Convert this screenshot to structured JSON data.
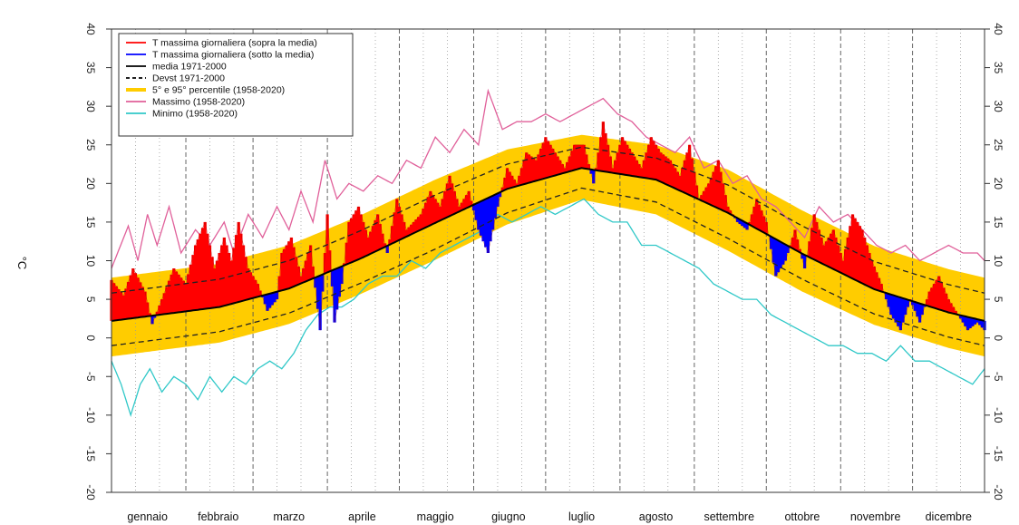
{
  "chart_data": {
    "type": "area",
    "ylabel": "°C",
    "ylim": [
      -20,
      40
    ],
    "yticks": [
      "40",
      "35",
      "30",
      "25",
      "20",
      "15",
      "10",
      "5",
      "0",
      "-5",
      "-10",
      "-15",
      "-20"
    ],
    "months": [
      "gennaio",
      "febbraio",
      "marzo",
      "aprile",
      "maggio",
      "giugno",
      "luglio",
      "agosto",
      "settembre",
      "ottobre",
      "novembre",
      "dicembre"
    ],
    "month_days": [
      31,
      28,
      31,
      30,
      31,
      30,
      31,
      31,
      30,
      31,
      30,
      31
    ],
    "grid": "vertical dotted per 10 days, dashed at month boundaries",
    "legend": {
      "placement": "top-left",
      "entries": [
        {
          "key": "above",
          "label": "T massima giornaliera (sopra la media)",
          "color": "#ff0000",
          "style": "solid"
        },
        {
          "key": "below",
          "label": "T massima giornaliera (sotto la media)",
          "color": "#0000ff",
          "style": "solid"
        },
        {
          "key": "mean",
          "label": "media 1971-2000",
          "color": "#000000",
          "style": "solid"
        },
        {
          "key": "sd",
          "label": "Devst 1971-2000",
          "color": "#000000",
          "style": "dashed"
        },
        {
          "key": "pct",
          "label": "5° e 95° percentile (1958-2020)",
          "color": "#ffcc00",
          "style": "thick"
        },
        {
          "key": "max",
          "label": "Massimo (1958-2020)",
          "color": "#e0609a",
          "style": "solid"
        },
        {
          "key": "min",
          "label": "Minimo (1958-2020)",
          "color": "#30c8c8",
          "style": "solid"
        }
      ]
    },
    "series": [
      {
        "key": "mean",
        "days": [
          1,
          16,
          46,
          75,
          105,
          136,
          166,
          197,
          228,
          258,
          289,
          319,
          350,
          365
        ],
        "values": [
          2.2,
          2.8,
          4.0,
          6.4,
          10.3,
          14.9,
          19.3,
          22.0,
          20.5,
          16.2,
          10.9,
          6.3,
          3.3,
          2.2
        ]
      },
      {
        "key": "sd_upper",
        "days": [
          1,
          16,
          46,
          75,
          105,
          136,
          166,
          197,
          228,
          258,
          289,
          319,
          350,
          365
        ],
        "values": [
          5.8,
          6.4,
          7.6,
          10.0,
          13.9,
          18.5,
          22.5,
          24.7,
          23.3,
          19.8,
          14.5,
          9.9,
          6.9,
          5.8
        ]
      },
      {
        "key": "sd_lower",
        "days": [
          1,
          16,
          46,
          75,
          105,
          136,
          166,
          197,
          228,
          258,
          289,
          319,
          350,
          365
        ],
        "values": [
          -1.0,
          -0.4,
          0.8,
          3.2,
          7.1,
          11.5,
          16.2,
          19.4,
          17.6,
          12.9,
          7.6,
          3.1,
          0.1,
          -1.0
        ]
      },
      {
        "key": "p95",
        "days": [
          1,
          16,
          46,
          75,
          105,
          136,
          166,
          197,
          228,
          258,
          289,
          319,
          350,
          365
        ],
        "values": [
          7.8,
          8.4,
          9.6,
          12.0,
          15.9,
          20.5,
          24.4,
          26.3,
          25.0,
          21.8,
          16.5,
          11.9,
          8.9,
          7.8
        ]
      },
      {
        "key": "p5",
        "days": [
          1,
          16,
          46,
          75,
          105,
          136,
          166,
          197,
          228,
          258,
          289,
          319,
          350,
          365
        ],
        "values": [
          -2.4,
          -1.8,
          -0.6,
          1.8,
          5.7,
          10.1,
          14.7,
          17.9,
          16.0,
          11.3,
          6.0,
          1.7,
          -1.3,
          -2.4
        ]
      },
      {
        "key": "max",
        "days": [
          1,
          8,
          12,
          16,
          20,
          25,
          30,
          36,
          42,
          48,
          52,
          58,
          64,
          70,
          75,
          80,
          85,
          90,
          95,
          100,
          106,
          112,
          118,
          124,
          130,
          136,
          142,
          148,
          154,
          158,
          164,
          170,
          176,
          182,
          188,
          194,
          200,
          206,
          212,
          218,
          224,
          230,
          236,
          242,
          248,
          254,
          260,
          266,
          272,
          278,
          284,
          290,
          296,
          302,
          308,
          314,
          320,
          326,
          332,
          338,
          344,
          350,
          356,
          362,
          365
        ],
        "values": [
          9,
          14.5,
          10,
          16,
          12,
          17,
          11,
          14,
          12,
          15,
          11,
          16,
          13,
          17,
          14,
          19,
          15,
          23,
          18,
          20,
          19,
          21,
          20,
          23,
          22,
          26,
          24,
          27,
          25,
          32,
          27,
          28,
          28,
          29,
          28,
          29,
          30,
          31,
          29,
          28,
          26,
          25,
          24,
          26,
          22,
          23,
          20,
          21,
          18,
          17,
          15,
          13,
          17,
          15,
          16,
          14,
          12,
          11,
          12,
          10,
          11,
          12,
          11,
          11,
          10
        ]
      },
      {
        "key": "min",
        "days": [
          1,
          5,
          9,
          13,
          17,
          22,
          27,
          32,
          37,
          42,
          47,
          52,
          57,
          62,
          67,
          72,
          77,
          82,
          87,
          92,
          97,
          102,
          108,
          114,
          120,
          126,
          132,
          138,
          144,
          150,
          156,
          162,
          168,
          174,
          180,
          186,
          192,
          198,
          204,
          210,
          216,
          222,
          228,
          234,
          240,
          246,
          252,
          258,
          264,
          270,
          276,
          282,
          288,
          294,
          300,
          306,
          312,
          318,
          324,
          330,
          336,
          342,
          348,
          354,
          360,
          365
        ],
        "values": [
          -3,
          -6,
          -10,
          -6,
          -4,
          -7,
          -5,
          -6,
          -8,
          -5,
          -7,
          -5,
          -6,
          -4,
          -3,
          -4,
          -2,
          1,
          3,
          4,
          4,
          5,
          7,
          8,
          8,
          10,
          9,
          11,
          12,
          13,
          14,
          16,
          15,
          16,
          17,
          16,
          17,
          18,
          16,
          15,
          15,
          12,
          12,
          11,
          10,
          9,
          7,
          6,
          5,
          5,
          3,
          2,
          1,
          0,
          -1,
          -1,
          -2,
          -2,
          -3,
          -1,
          -3,
          -3,
          -4,
          -5,
          -6,
          -4
        ]
      },
      {
        "key": "tmax",
        "days": [
          1,
          6,
          10,
          15,
          18,
          22,
          27,
          32,
          36,
          40,
          44,
          48,
          51,
          54,
          58,
          62,
          66,
          70,
          72,
          76,
          80,
          84,
          88,
          91,
          94,
          97,
          100,
          104,
          108,
          112,
          116,
          120,
          124,
          130,
          134,
          138,
          142,
          146,
          150,
          154,
          158,
          162,
          166,
          170,
          174,
          178,
          182,
          186,
          190,
          194,
          198,
          202,
          206,
          210,
          214,
          218,
          222,
          226,
          230,
          234,
          238,
          242,
          246,
          250,
          254,
          258,
          262,
          266,
          270,
          274,
          278,
          282,
          286,
          290,
          294,
          298,
          302,
          306,
          310,
          314,
          318,
          322,
          326,
          330,
          334,
          338,
          342,
          346,
          350,
          354,
          358,
          362,
          365
        ],
        "values": [
          7.5,
          5.5,
          9,
          6,
          1.8,
          5,
          9,
          7,
          12,
          15,
          9,
          13,
          10,
          15,
          9,
          7,
          3.5,
          5,
          11,
          13,
          8,
          12,
          1,
          16,
          2,
          7,
          15,
          17,
          13,
          16,
          11,
          18,
          14,
          16,
          19,
          17,
          21,
          17,
          19,
          14,
          11,
          17,
          22,
          20,
          24,
          23,
          26,
          24,
          22,
          25,
          25,
          20,
          28,
          22,
          26,
          24,
          22,
          26,
          24,
          23,
          21,
          25,
          18,
          20,
          23,
          17,
          15,
          14,
          18,
          15,
          8,
          10,
          14,
          9,
          16,
          12,
          14,
          10,
          16,
          14,
          10,
          7,
          3,
          1,
          5,
          2,
          6,
          8,
          5,
          3,
          1,
          2,
          1
        ]
      }
    ]
  }
}
